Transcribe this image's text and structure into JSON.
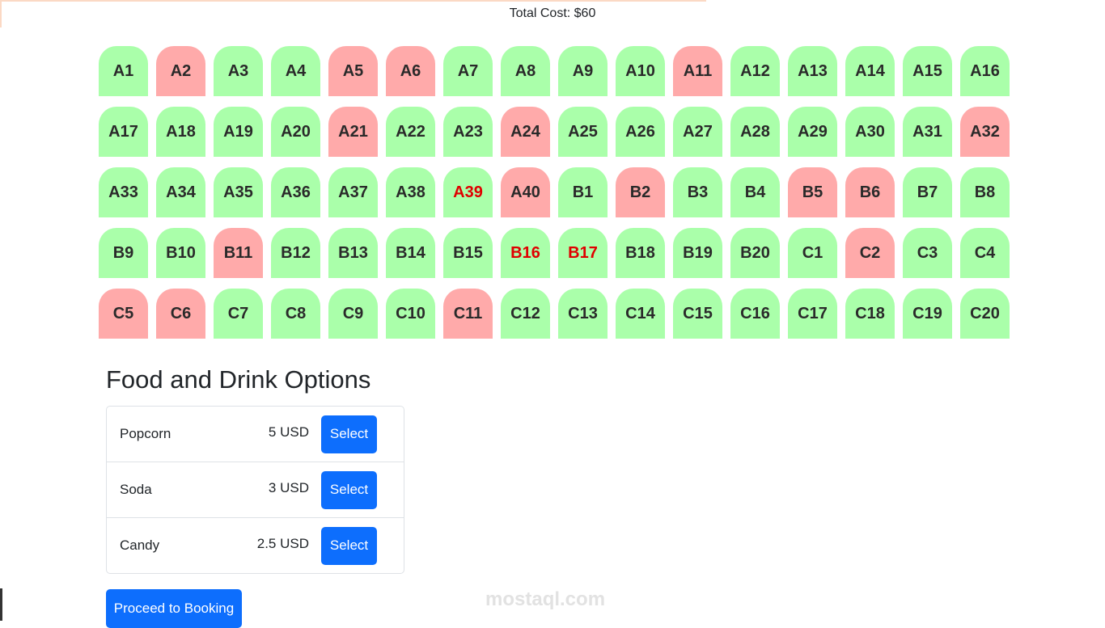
{
  "header": {
    "total_cost": "Total Cost: $60"
  },
  "colors": {
    "available": "#aaffaa",
    "booked": "#ffaaaa",
    "selected_text": "#e00000",
    "primary": "#0d6efd"
  },
  "seats": [
    {
      "id": "A1",
      "status": "available"
    },
    {
      "id": "A2",
      "status": "booked"
    },
    {
      "id": "A3",
      "status": "available"
    },
    {
      "id": "A4",
      "status": "available"
    },
    {
      "id": "A5",
      "status": "booked"
    },
    {
      "id": "A6",
      "status": "booked"
    },
    {
      "id": "A7",
      "status": "available"
    },
    {
      "id": "A8",
      "status": "available"
    },
    {
      "id": "A9",
      "status": "available"
    },
    {
      "id": "A10",
      "status": "available"
    },
    {
      "id": "A11",
      "status": "booked"
    },
    {
      "id": "A12",
      "status": "available"
    },
    {
      "id": "A13",
      "status": "available"
    },
    {
      "id": "A14",
      "status": "available"
    },
    {
      "id": "A15",
      "status": "available"
    },
    {
      "id": "A16",
      "status": "available"
    },
    {
      "id": "A17",
      "status": "available"
    },
    {
      "id": "A18",
      "status": "available"
    },
    {
      "id": "A19",
      "status": "available"
    },
    {
      "id": "A20",
      "status": "available"
    },
    {
      "id": "A21",
      "status": "booked"
    },
    {
      "id": "A22",
      "status": "available"
    },
    {
      "id": "A23",
      "status": "available"
    },
    {
      "id": "A24",
      "status": "booked"
    },
    {
      "id": "A25",
      "status": "available"
    },
    {
      "id": "A26",
      "status": "available"
    },
    {
      "id": "A27",
      "status": "available"
    },
    {
      "id": "A28",
      "status": "available"
    },
    {
      "id": "A29",
      "status": "available"
    },
    {
      "id": "A30",
      "status": "available"
    },
    {
      "id": "A31",
      "status": "available"
    },
    {
      "id": "A32",
      "status": "booked"
    },
    {
      "id": "A33",
      "status": "available"
    },
    {
      "id": "A34",
      "status": "available"
    },
    {
      "id": "A35",
      "status": "available"
    },
    {
      "id": "A36",
      "status": "available"
    },
    {
      "id": "A37",
      "status": "available"
    },
    {
      "id": "A38",
      "status": "available"
    },
    {
      "id": "A39",
      "status": "selected"
    },
    {
      "id": "A40",
      "status": "booked"
    },
    {
      "id": "B1",
      "status": "available"
    },
    {
      "id": "B2",
      "status": "booked"
    },
    {
      "id": "B3",
      "status": "available"
    },
    {
      "id": "B4",
      "status": "available"
    },
    {
      "id": "B5",
      "status": "booked"
    },
    {
      "id": "B6",
      "status": "booked"
    },
    {
      "id": "B7",
      "status": "available"
    },
    {
      "id": "B8",
      "status": "available"
    },
    {
      "id": "B9",
      "status": "available"
    },
    {
      "id": "B10",
      "status": "available"
    },
    {
      "id": "B11",
      "status": "booked"
    },
    {
      "id": "B12",
      "status": "available"
    },
    {
      "id": "B13",
      "status": "available"
    },
    {
      "id": "B14",
      "status": "available"
    },
    {
      "id": "B15",
      "status": "available"
    },
    {
      "id": "B16",
      "status": "selected"
    },
    {
      "id": "B17",
      "status": "selected"
    },
    {
      "id": "B18",
      "status": "available"
    },
    {
      "id": "B19",
      "status": "available"
    },
    {
      "id": "B20",
      "status": "available"
    },
    {
      "id": "C1",
      "status": "available"
    },
    {
      "id": "C2",
      "status": "booked"
    },
    {
      "id": "C3",
      "status": "available"
    },
    {
      "id": "C4",
      "status": "available"
    },
    {
      "id": "C5",
      "status": "booked"
    },
    {
      "id": "C6",
      "status": "booked"
    },
    {
      "id": "C7",
      "status": "available"
    },
    {
      "id": "C8",
      "status": "available"
    },
    {
      "id": "C9",
      "status": "available"
    },
    {
      "id": "C10",
      "status": "available"
    },
    {
      "id": "C11",
      "status": "booked"
    },
    {
      "id": "C12",
      "status": "available"
    },
    {
      "id": "C13",
      "status": "available"
    },
    {
      "id": "C14",
      "status": "available"
    },
    {
      "id": "C15",
      "status": "available"
    },
    {
      "id": "C16",
      "status": "available"
    },
    {
      "id": "C17",
      "status": "available"
    },
    {
      "id": "C18",
      "status": "available"
    },
    {
      "id": "C19",
      "status": "available"
    },
    {
      "id": "C20",
      "status": "available"
    }
  ],
  "food": {
    "title": "Food and Drink Options",
    "items": [
      {
        "name": "Popcorn",
        "price": "5 USD",
        "button": "Select"
      },
      {
        "name": "Soda",
        "price": "3 USD",
        "button": "Select"
      },
      {
        "name": "Candy",
        "price": "2.5 USD",
        "button": "Select"
      }
    ]
  },
  "proceed_label": "Proceed to Booking",
  "watermark": "mostaql.com"
}
